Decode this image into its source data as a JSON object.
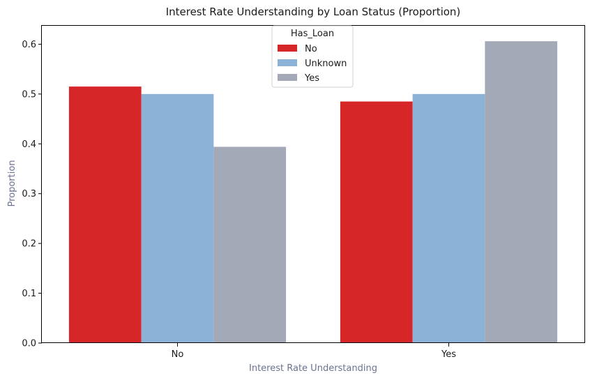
{
  "chart_data": {
    "type": "bar",
    "title": "Interest Rate Understanding by Loan Status (Proportion)",
    "xlabel": "Interest Rate Understanding",
    "ylabel": "Proportion",
    "categories": [
      "No",
      "Yes"
    ],
    "series": [
      {
        "name": "No",
        "values": [
          0.515,
          0.485
        ],
        "color": "#d62628"
      },
      {
        "name": "Unknown",
        "values": [
          0.5,
          0.5
        ],
        "color": "#8db2d7"
      },
      {
        "name": "Yes",
        "values": [
          0.394,
          0.606
        ],
        "color": "#a3a9b6"
      }
    ],
    "ylim": [
      0,
      0.637
    ],
    "yticks": [
      "0.0",
      "0.1",
      "0.2",
      "0.3",
      "0.4",
      "0.5",
      "0.6"
    ],
    "legend": {
      "title": "Has_Loan",
      "placement": "top-center"
    },
    "grid": false
  }
}
